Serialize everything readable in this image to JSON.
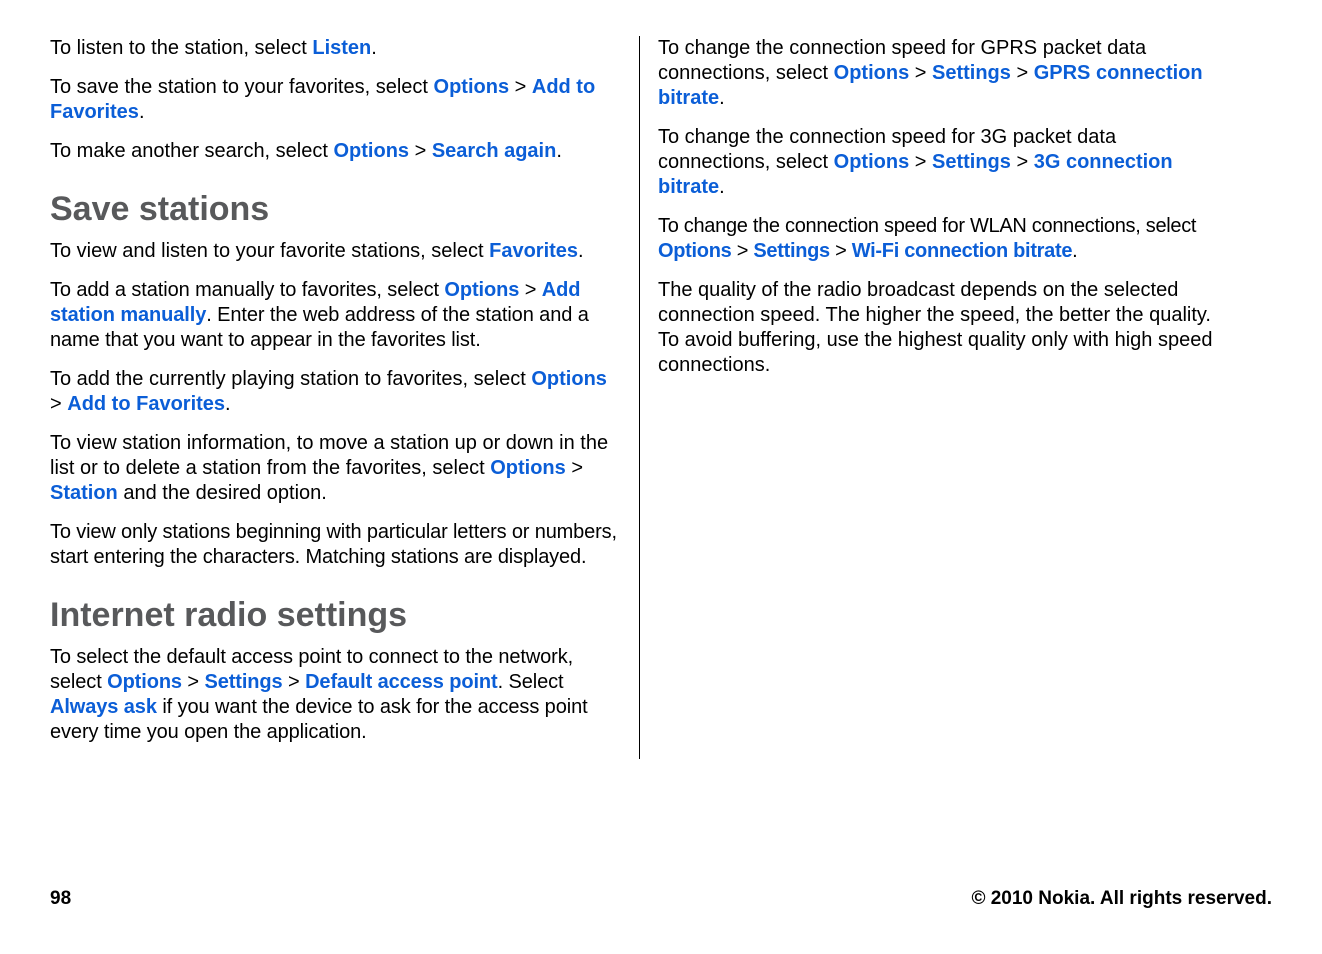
{
  "col1": {
    "p1_a": "To listen to the station, select ",
    "p1_k1": "Listen",
    "p1_b": ".",
    "p2_a": "To save the station to your favorites, select ",
    "p2_k1": "Options",
    "p2_k2": "Add to Favorites",
    "p2_b": ".",
    "p3_a": "To make another search, select ",
    "p3_k1": "Options",
    "p3_k2": "Search again",
    "p3_b": ".",
    "h1": "Save stations",
    "p4_a": "To view and listen to your favorite stations, select ",
    "p4_k1": "Favorites",
    "p4_b": ".",
    "p5_a": "To add a station manually to favorites, select ",
    "p5_k1": "Options",
    "p5_k2": "Add station manually",
    "p5_b": ". Enter the web address of the station and a name that you want to appear in the favorites list.",
    "p6_a": "To add the currently playing station to favorites, select ",
    "p6_k1": "Options",
    "p6_k2": "Add to Favorites",
    "p6_b": ".",
    "p7_a": "To view station information, to move a station up or down in the list or to delete a station from the favorites, select ",
    "p7_k1": "Options",
    "p7_k2": "Station",
    "p7_b": " and the desired option.",
    "p8": "To view only stations beginning with particular letters or numbers, start entering the characters. Matching stations are displayed.",
    "h2": "Internet radio settings",
    "p9_a": "To select the default access point to connect to the network, select ",
    "p9_k1": "Options",
    "p9_k2": "Settings",
    "p9_k3": "Default access point",
    "p9_b": ". Select ",
    "p9_k4": "Always ask",
    "p9_c": " if you want the device to ask for the access point every time you open the application."
  },
  "col2": {
    "p1_a": "To change the connection speed for GPRS packet data connections, select ",
    "p1_k1": "Options",
    "p1_k2": "Settings",
    "p1_k3": "GPRS connection bitrate",
    "p1_b": ".",
    "p2_a": "To change the connection speed for 3G packet data connections, select ",
    "p2_k1": "Options",
    "p2_k2": "Settings",
    "p2_k3": "3G connection bitrate",
    "p2_b": ".",
    "p3_a": "To change the connection speed for WLAN connections, select ",
    "p3_k1": "Options",
    "p3_k2": "Settings",
    "p3_k3": "Wi-Fi connection bitrate",
    "p3_b": ".",
    "p4": "The quality of the radio broadcast depends on the selected connection speed. The higher the speed, the better the quality. To avoid buffering, use the highest quality only with high speed connections."
  },
  "footer": {
    "page": "98",
    "copyright": "© 2010 Nokia. All rights reserved."
  },
  "sep": " > "
}
